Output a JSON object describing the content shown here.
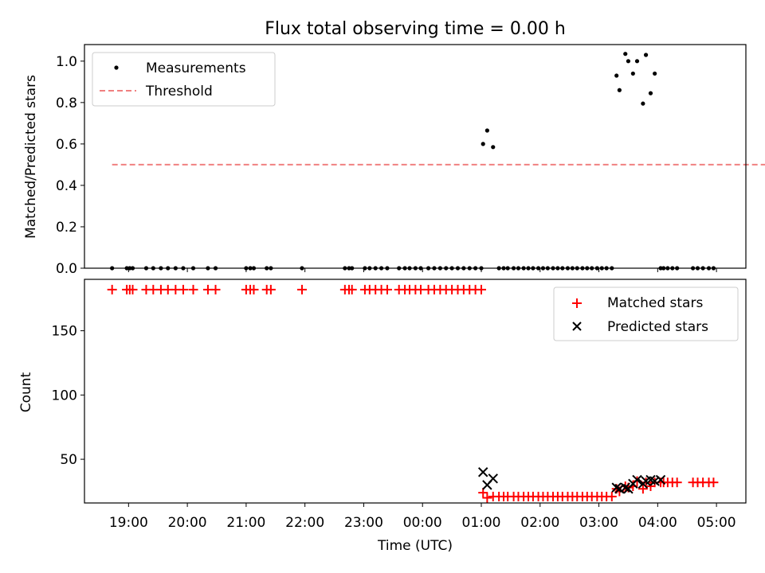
{
  "figure_title": "Flux total observing time = 0.00 h",
  "chart_data": [
    {
      "type": "scatter",
      "ylabel": "Matched/Predicted stars",
      "x_range_hours": [
        18.25,
        29.5
      ],
      "ylim": [
        0,
        1.08
      ],
      "yticks": [
        0.0,
        0.2,
        0.4,
        0.6,
        0.8,
        1.0
      ],
      "ytick_labels": [
        "0.0",
        "0.2",
        "0.4",
        "0.6",
        "0.8",
        "1.0"
      ],
      "legend_placement": "top-left",
      "legend": [
        {
          "label": "Measurements",
          "color": "#000000",
          "marker": "dot"
        },
        {
          "label": "Threshold",
          "color": "#f08080",
          "marker": "dashed-line"
        }
      ],
      "threshold": {
        "name": "Threshold",
        "x": [
          18.72,
          29.96
        ],
        "y": 0.5,
        "color": "#f08080"
      },
      "measurements": {
        "name": "Measurements",
        "color": "#000000",
        "x": [
          18.72,
          18.97,
          19.02,
          19.07,
          19.3,
          19.42,
          19.55,
          19.67,
          19.8,
          19.93,
          20.1,
          20.35,
          20.48,
          21.0,
          21.07,
          21.13,
          21.35,
          21.42,
          21.95,
          22.68,
          22.75,
          22.8,
          23.02,
          23.1,
          23.2,
          23.3,
          23.4,
          23.6,
          23.7,
          23.78,
          23.88,
          23.97,
          24.1,
          24.2,
          24.3,
          24.4,
          24.5,
          24.6,
          24.7,
          24.8,
          24.9,
          25.0,
          25.03,
          25.1,
          25.2,
          25.3,
          25.38,
          25.45,
          25.55,
          25.63,
          25.72,
          25.8,
          25.88,
          25.97,
          26.05,
          26.13,
          26.22,
          26.3,
          26.38,
          26.47,
          26.55,
          26.63,
          26.72,
          26.8,
          26.88,
          26.97,
          27.05,
          27.13,
          27.22,
          27.3,
          27.35,
          27.45,
          27.5,
          27.58,
          27.65,
          27.75,
          27.8,
          27.88,
          27.95,
          28.05,
          28.1,
          28.17,
          28.25,
          28.33,
          28.6,
          28.68,
          28.77,
          28.87,
          28.95
        ],
        "y": [
          0,
          0,
          0,
          0,
          0,
          0,
          0,
          0,
          0,
          0,
          0,
          0,
          0,
          0,
          0,
          0,
          0,
          0,
          0,
          0,
          0,
          0,
          0,
          0,
          0,
          0,
          0,
          0,
          0,
          0,
          0,
          0,
          0,
          0,
          0,
          0,
          0,
          0,
          0,
          0,
          0,
          0,
          0.6,
          0.665,
          0.585,
          0,
          0,
          0,
          0,
          0,
          0,
          0,
          0,
          0,
          0,
          0,
          0,
          0,
          0,
          0,
          0,
          0,
          0,
          0,
          0,
          0,
          0,
          0,
          0,
          0.93,
          0.86,
          1.035,
          1.0,
          0.94,
          1.0,
          0.795,
          1.03,
          0.845,
          0.94,
          0,
          0,
          0,
          0,
          0,
          0,
          0,
          0,
          0,
          0
        ]
      }
    },
    {
      "type": "scatter",
      "xlabel": "Time (UTC)",
      "ylabel": "Count",
      "x_range_hours": [
        18.25,
        29.5
      ],
      "ylim": [
        16,
        190
      ],
      "yticks": [
        50,
        100,
        150
      ],
      "ytick_labels": [
        "50",
        "100",
        "150"
      ],
      "xticks": [
        19,
        20,
        21,
        22,
        23,
        24,
        25,
        26,
        27,
        28,
        29
      ],
      "xtick_labels": [
        "19:00",
        "20:00",
        "21:00",
        "22:00",
        "23:00",
        "00:00",
        "01:00",
        "02:00",
        "03:00",
        "04:00",
        "05:00"
      ],
      "legend_placement": "top-right",
      "legend": [
        {
          "label": "Matched stars",
          "color": "#ff0000",
          "marker": "plus"
        },
        {
          "label": "Predicted stars",
          "color": "#000000",
          "marker": "x"
        }
      ],
      "series": [
        {
          "name": "Matched stars",
          "color": "#ff0000",
          "marker": "plus",
          "x": [
            18.72,
            18.97,
            19.02,
            19.07,
            19.3,
            19.42,
            19.55,
            19.67,
            19.8,
            19.93,
            20.1,
            20.35,
            20.48,
            21.0,
            21.07,
            21.13,
            21.35,
            21.42,
            21.95,
            22.68,
            22.75,
            22.8,
            23.02,
            23.1,
            23.2,
            23.3,
            23.4,
            23.6,
            23.7,
            23.78,
            23.88,
            23.97,
            24.1,
            24.2,
            24.3,
            24.4,
            24.5,
            24.6,
            24.7,
            24.8,
            24.9,
            25.0,
            25.03,
            25.1,
            25.2,
            25.3,
            25.38,
            25.45,
            25.55,
            25.63,
            25.72,
            25.8,
            25.88,
            25.97,
            26.05,
            26.13,
            26.22,
            26.3,
            26.38,
            26.47,
            26.55,
            26.63,
            26.72,
            26.8,
            26.88,
            26.97,
            27.05,
            27.13,
            27.22,
            27.3,
            27.35,
            27.45,
            27.5,
            27.58,
            27.65,
            27.75,
            27.8,
            27.88,
            27.95,
            28.05,
            28.1,
            28.17,
            28.25,
            28.33,
            28.6,
            28.68,
            28.77,
            28.87,
            28.95
          ],
          "y": [
            182,
            182,
            182,
            182,
            182,
            182,
            182,
            182,
            182,
            182,
            182,
            182,
            182,
            182,
            182,
            182,
            182,
            182,
            182,
            182,
            182,
            182,
            182,
            182,
            182,
            182,
            182,
            182,
            182,
            182,
            182,
            182,
            182,
            182,
            182,
            182,
            182,
            182,
            182,
            182,
            182,
            182,
            24,
            20,
            21,
            21,
            21,
            21,
            21,
            21,
            21,
            21,
            21,
            21,
            21,
            21,
            21,
            21,
            21,
            21,
            21,
            21,
            21,
            21,
            21,
            21,
            21,
            21,
            21,
            27,
            25,
            29,
            28,
            29,
            33,
            27,
            32,
            29,
            32,
            32,
            32,
            32,
            32,
            32,
            32,
            32,
            32,
            32,
            32
          ]
        },
        {
          "name": "Predicted stars",
          "color": "#000000",
          "marker": "x",
          "x": [
            25.03,
            25.1,
            25.2,
            27.3,
            27.35,
            27.45,
            27.5,
            27.58,
            27.65,
            27.75,
            27.8,
            27.88,
            27.95,
            28.05
          ],
          "y": [
            40,
            30,
            35,
            28,
            27,
            28,
            27,
            31,
            34,
            31,
            33,
            34,
            33,
            34
          ]
        }
      ]
    }
  ]
}
